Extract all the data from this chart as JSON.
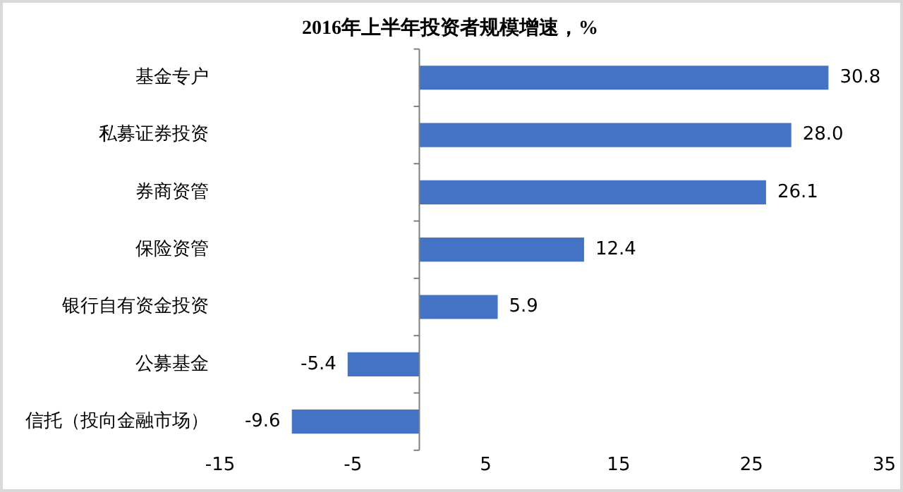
{
  "chart_data": {
    "type": "bar",
    "orientation": "horizontal",
    "title": "2016年上半年投资者规模增速，%",
    "categories": [
      "基金专户",
      "私募证券投资",
      "券商资管",
      "保险资管",
      "银行自有资金投资",
      "公募基金",
      "信托（投向金融市场）"
    ],
    "values": [
      30.8,
      28.0,
      26.1,
      12.4,
      5.9,
      -5.4,
      -9.6
    ],
    "value_labels": [
      "30.8",
      "28.0",
      "26.1",
      "12.4",
      "5.9",
      "-5.4",
      "-9.6"
    ],
    "color": "#4472c4",
    "xlim": [
      -15,
      35
    ],
    "xticks": [
      -15,
      -5,
      5,
      15,
      25,
      35
    ],
    "grid": false,
    "legend": false
  }
}
